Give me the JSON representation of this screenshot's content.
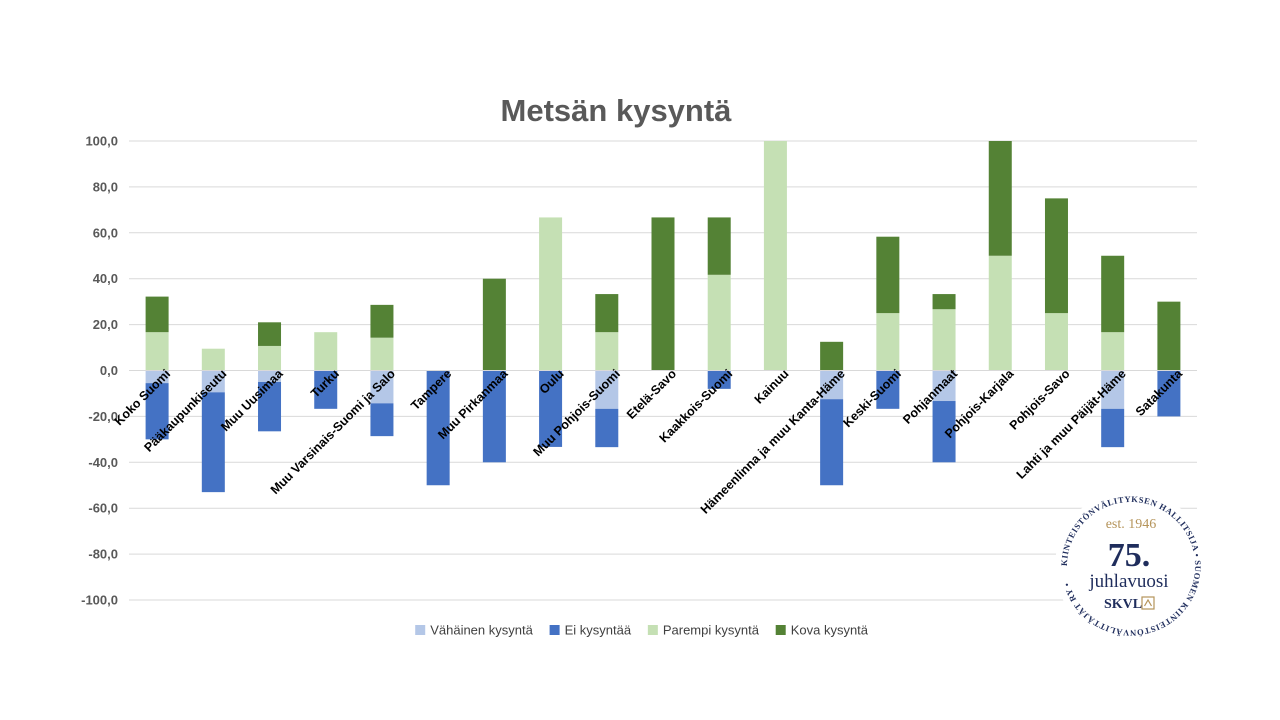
{
  "colors": {
    "vahainen": "#b4c7e7",
    "ei": "#4472c4",
    "parempi": "#c5e0b4",
    "kova": "#548235",
    "grid": "#d9d9d9",
    "logo_navy": "#1f2d5c",
    "logo_gold": "#b5945a"
  },
  "chart_data": {
    "type": "bar",
    "stacked": true,
    "title": "Metsän kysyntä",
    "xlabel": "",
    "ylabel": "",
    "ylim": [
      -100,
      100
    ],
    "y_ticks": [
      "100,0",
      "80,0",
      "60,0",
      "40,0",
      "20,0",
      "0,0",
      "-20,0",
      "-40,0",
      "-60,0",
      "-80,0",
      "-100,0"
    ],
    "y_tick_values": [
      100,
      80,
      60,
      40,
      20,
      0,
      -20,
      -40,
      -60,
      -80,
      -100
    ],
    "grid": true,
    "legend_position": "bottom",
    "categories": [
      "Koko Suomi",
      "Pääkaupunkiseutu",
      "Muu Uusimaa",
      "Turku",
      "Muu Varsinais-Suomi ja Salo",
      "Tampere",
      "Muu Pirkanmaa",
      "Oulu",
      "Muu Pohjois-Suomi",
      "Etelä-Savo",
      "Kaakkois-Suomi",
      "Kainuu",
      "Hämeenlinna ja muu Kanta-Häme",
      "Keski-Suomi",
      "Pohjanmaat",
      "Pohjois-Karjala",
      "Pohjois-Savo",
      "Lahti ja muu Päijät-Häme",
      "Satakunta"
    ],
    "series": [
      {
        "name": "Vähäinen kysyntä",
        "color_key": "vahainen",
        "values": [
          -5.5,
          -9.5,
          -5,
          0,
          -14.3,
          0,
          0,
          0,
          -16.7,
          0,
          0,
          0,
          -12.5,
          0,
          -13.3,
          0,
          0,
          -16.7,
          0
        ]
      },
      {
        "name": "Ei kysyntää",
        "color_key": "ei",
        "values": [
          -24.5,
          -43.5,
          -21.5,
          -16.7,
          -14.3,
          -50,
          -40,
          -33.3,
          -16.7,
          0,
          -8,
          0,
          -37.5,
          -16.7,
          -26.7,
          0,
          0,
          -16.7,
          -20
        ]
      },
      {
        "name": "Parempi kysyntä",
        "color_key": "parempi",
        "values": [
          16.7,
          9.5,
          10.7,
          16.7,
          14.3,
          0,
          0,
          66.7,
          16.7,
          0,
          41.7,
          100,
          0,
          25,
          26.7,
          50,
          25,
          16.7,
          0
        ]
      },
      {
        "name": "Kova kysyntä",
        "color_key": "kova",
        "values": [
          15.5,
          0,
          10.3,
          0,
          14.3,
          0,
          40,
          0,
          16.6,
          66.7,
          25,
          0,
          12.5,
          33.3,
          6.6,
          50,
          50,
          33.3,
          30
        ]
      }
    ]
  },
  "logo": {
    "year_text": "est. 1946",
    "number": "75.",
    "subtitle": "juhlavuosi",
    "brand": "SKVL",
    "brand_icon": "house-icon",
    "ring_text": "KIINTEISTÖNVÄLITYKSEN HALLITSIJA • SUOMEN KIINTEISTÖNVÄLITTÄJÄT RY •"
  }
}
